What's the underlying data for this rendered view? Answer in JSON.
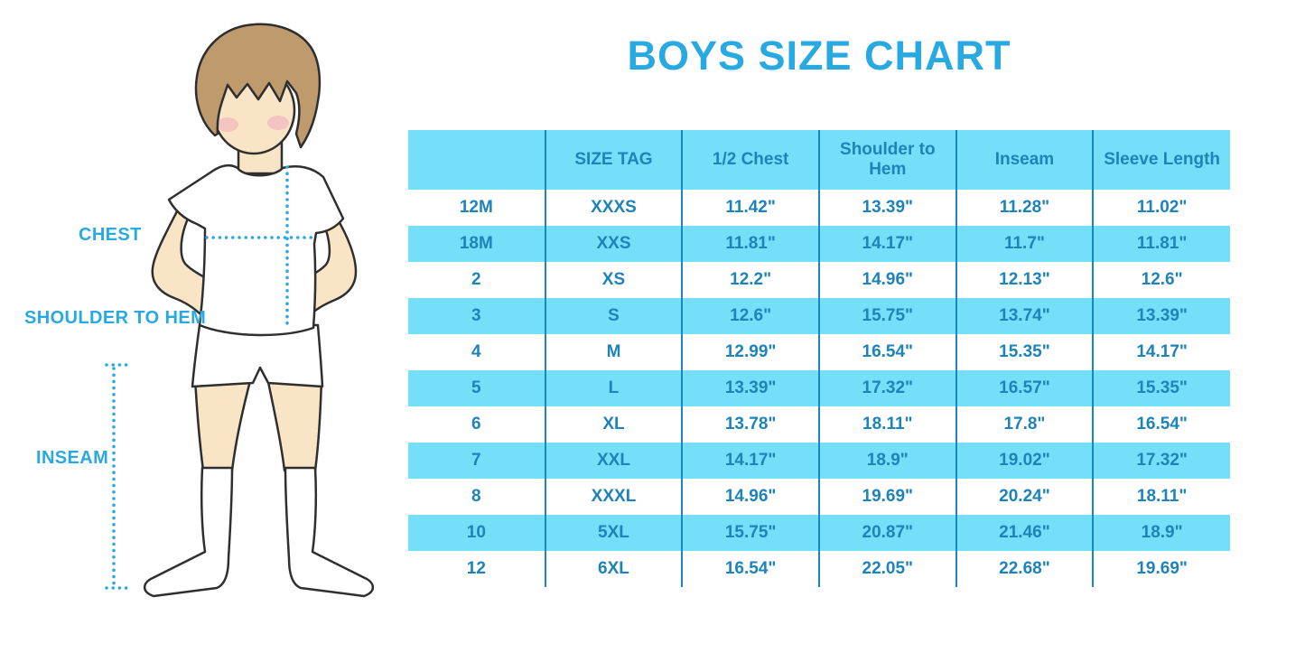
{
  "figure": {
    "icon": "boy-figure-illustration",
    "labels": {
      "chest": "CHEST",
      "shoulder_to_hem": "SHOULDER TO HEM",
      "inseam": "INSEAM"
    }
  },
  "chart_data": {
    "type": "table",
    "title": "BOYS SIZE CHART",
    "columns": [
      "",
      "SIZE TAG",
      "1/2 Chest",
      "Shoulder to Hem",
      "Inseam",
      "Sleeve Length"
    ],
    "rows": [
      [
        "12M",
        "XXXS",
        "11.42\"",
        "13.39\"",
        "11.28\"",
        "11.02\""
      ],
      [
        "18M",
        "XXS",
        "11.81\"",
        "14.17\"",
        "11.7\"",
        "11.81\""
      ],
      [
        "2",
        "XS",
        "12.2\"",
        "14.96\"",
        "12.13\"",
        "12.6\""
      ],
      [
        "3",
        "S",
        "12.6\"",
        "15.75\"",
        "13.74\"",
        "13.39\""
      ],
      [
        "4",
        "M",
        "12.99\"",
        "16.54\"",
        "15.35\"",
        "14.17\""
      ],
      [
        "5",
        "L",
        "13.39\"",
        "17.32\"",
        "16.57\"",
        "15.35\""
      ],
      [
        "6",
        "XL",
        "13.78\"",
        "18.11\"",
        "17.8\"",
        "16.54\""
      ],
      [
        "7",
        "XXL",
        "14.17\"",
        "18.9\"",
        "19.02\"",
        "17.32\""
      ],
      [
        "8",
        "XXXL",
        "14.96\"",
        "19.69\"",
        "20.24\"",
        "18.11\""
      ],
      [
        "10",
        "5XL",
        "15.75\"",
        "20.87\"",
        "21.46\"",
        "18.9\""
      ],
      [
        "12",
        "6XL",
        "16.54\"",
        "22.05\"",
        "22.68\"",
        "19.69\""
      ]
    ],
    "row_striping": "white/blue alternating, header blue",
    "legend_position": "none",
    "grid": "vertical column separators only"
  },
  "colors": {
    "accent": "#29A9E1",
    "fill": "#75DFFA",
    "line": "#1886BF",
    "tabletext": "#1D83B9"
  }
}
